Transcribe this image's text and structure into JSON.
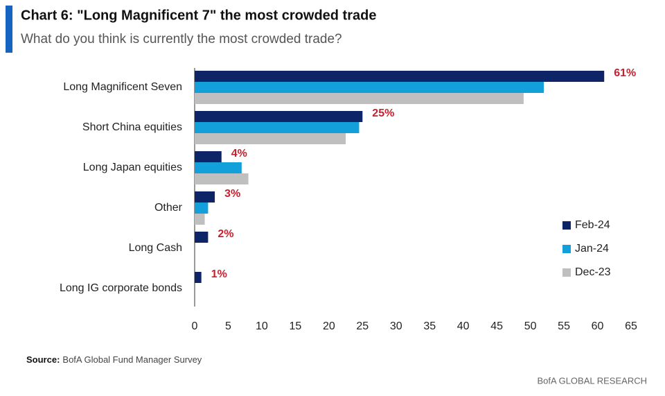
{
  "chart_data": {
    "type": "bar",
    "orientation": "horizontal",
    "title": "Chart 6: \"Long Magnificent 7\" the most crowded trade",
    "subtitle": "What do you think is currently the most crowded trade?",
    "categories": [
      "Long Magnificent Seven",
      "Short China equities",
      "Long Japan equities",
      "Other",
      "Long Cash",
      "Long IG corporate bonds"
    ],
    "series": [
      {
        "name": "Feb-24",
        "color": "#0d2466",
        "values": [
          61,
          25,
          4,
          3,
          2,
          1
        ],
        "value_labels": [
          "61%",
          "25%",
          "4%",
          "3%",
          "2%",
          "1%"
        ]
      },
      {
        "name": "Jan-24",
        "color": "#139fd9",
        "values": [
          52,
          24.5,
          7,
          2,
          null,
          null
        ]
      },
      {
        "name": "Dec-23",
        "color": "#bfbfbf",
        "values": [
          49,
          22.5,
          8,
          1.5,
          null,
          null
        ]
      }
    ],
    "value_label_color": "#c8202f",
    "xlim": [
      0,
      65
    ],
    "xticks": [
      0,
      5,
      10,
      15,
      20,
      25,
      30,
      35,
      40,
      45,
      50,
      55,
      60,
      65
    ],
    "legend": "right",
    "source_label": "Source:",
    "source": "BofA Global Fund Manager Survey",
    "footer": "BofA GLOBAL RESEARCH"
  }
}
